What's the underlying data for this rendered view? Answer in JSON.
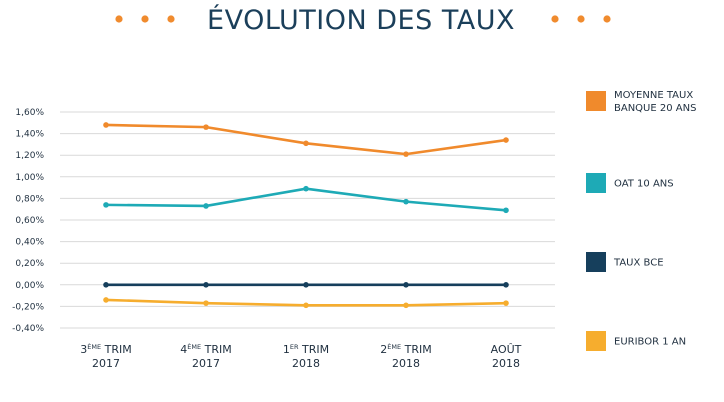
{
  "header": {
    "title": "ÉVOLUTION DES TAUX",
    "dot_color": "#f08b2e"
  },
  "chart_data": {
    "type": "line",
    "title": "ÉVOLUTION DES TAUX",
    "xlabel": "",
    "ylabel": "",
    "ylim": [
      -0.4,
      1.6
    ],
    "yticks": [
      {
        "value": 1.6,
        "label": "1,60%"
      },
      {
        "value": 1.4,
        "label": "1,40%"
      },
      {
        "value": 1.2,
        "label": "1,20%"
      },
      {
        "value": 1.0,
        "label": "1,00%"
      },
      {
        "value": 0.8,
        "label": "0,80%"
      },
      {
        "value": 0.6,
        "label": "0,60%"
      },
      {
        "value": 0.4,
        "label": "0,40%"
      },
      {
        "value": 0.2,
        "label": "0,20%"
      },
      {
        "value": 0.0,
        "label": "0,00%"
      },
      {
        "value": -0.2,
        "label": "-0,20%"
      },
      {
        "value": -0.4,
        "label": "-0,40%"
      }
    ],
    "grid": true,
    "legend_position": "right",
    "categories": [
      {
        "num": "3",
        "sup": "ÈME",
        "label": " TRIM",
        "year": "2017"
      },
      {
        "num": "4",
        "sup": "ÈME",
        "label": " TRIM",
        "year": "2017"
      },
      {
        "num": "1",
        "sup": "ER",
        "label": " TRIM",
        "year": "2018"
      },
      {
        "num": "2",
        "sup": "ÈME",
        "label": " TRIM",
        "year": "2018"
      },
      {
        "num": "",
        "sup": "",
        "label": "AOÛT",
        "year": "2018"
      }
    ],
    "series": [
      {
        "name": "MOYENNE TAUX BANQUE 20 ANS",
        "legend_lines": [
          "MOYENNE TAUX",
          "BANQUE 20 ANS"
        ],
        "color": "#f08a2c",
        "values": [
          1.48,
          1.46,
          1.31,
          1.21,
          1.34
        ]
      },
      {
        "name": "OAT 10 ANS",
        "legend_lines": [
          "OAT 10 ANS"
        ],
        "color": "#1eaab6",
        "values": [
          0.74,
          0.73,
          0.89,
          0.77,
          0.69
        ]
      },
      {
        "name": "TAUX BCE",
        "legend_lines": [
          "TAUX BCE"
        ],
        "color": "#163f5c",
        "values": [
          0.0,
          0.0,
          0.0,
          0.0,
          0.0
        ]
      },
      {
        "name": "EURIBOR 1 AN",
        "legend_lines": [
          "EURIBOR 1 AN"
        ],
        "color": "#f6ad2e",
        "values": [
          -0.14,
          -0.17,
          -0.19,
          -0.19,
          -0.17
        ]
      }
    ]
  }
}
